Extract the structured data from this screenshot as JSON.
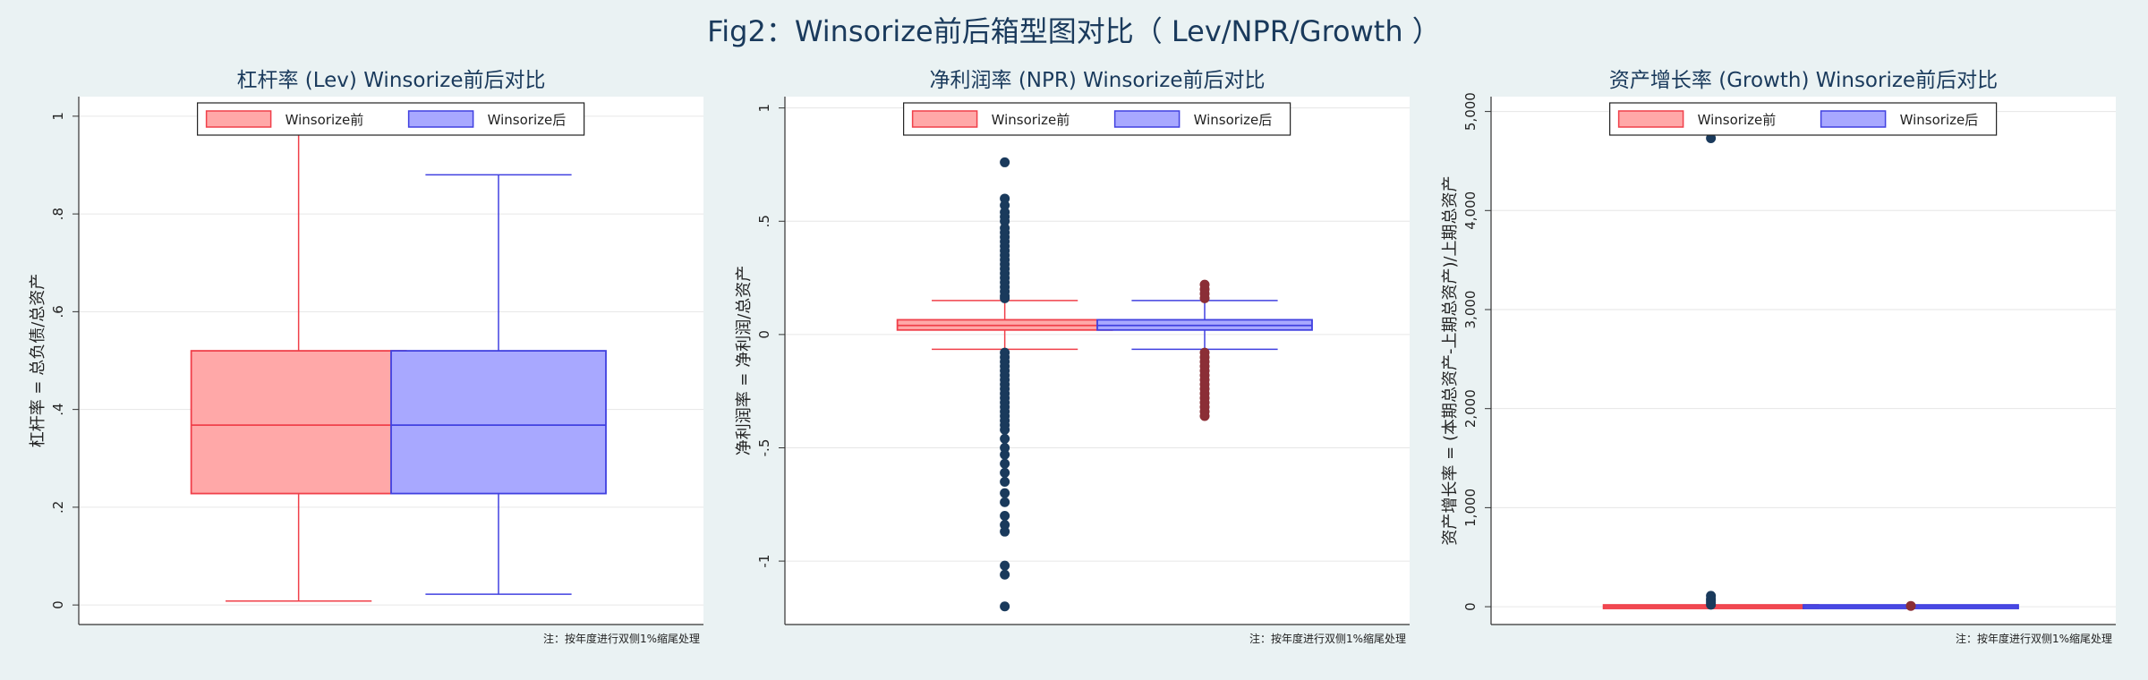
{
  "title": "Fig2：Winsorize前后箱型图对比（ Lev/NPR/Growth ）",
  "colors": {
    "before_fill": "#ffa8a8",
    "before_stroke": "#f0404a",
    "after_fill": "#a8a8ff",
    "after_stroke": "#4040e0",
    "outlier_before": "#1a3a5c",
    "outlier_after": "#8b2e36"
  },
  "chart_data": [
    {
      "type": "box",
      "title": "杠杆率 (Lev) Winsorize前后对比",
      "ylabel": "杠杆率 = 总负债/总资产",
      "note": "注：按年度进行双侧1%缩尾处理",
      "ylim": [
        -0.04,
        1.04
      ],
      "yticks": [
        0,
        0.2,
        0.4,
        0.6,
        0.8,
        1
      ],
      "ytick_labels": [
        "0",
        ".2",
        ".4",
        ".6",
        ".8",
        "1"
      ],
      "legend": [
        "Winsorize前",
        "Winsorize后"
      ],
      "legend_position": "top",
      "grid": true,
      "series": [
        {
          "name": "Winsorize前",
          "whisker_low": 0.008,
          "q1": 0.228,
          "median": 0.368,
          "q3": 0.52,
          "whisker_high": 0.965,
          "outliers": []
        },
        {
          "name": "Winsorize后",
          "whisker_low": 0.022,
          "q1": 0.228,
          "median": 0.368,
          "q3": 0.52,
          "whisker_high": 0.88,
          "outliers": []
        }
      ]
    },
    {
      "type": "box",
      "title": "净利润率 (NPR) Winsorize前后对比",
      "ylabel": "净利润率 = 净利润/总资产",
      "note": "注：按年度进行双侧1%缩尾处理",
      "ylim": [
        -1.28,
        1.05
      ],
      "yticks": [
        -1,
        -0.5,
        0,
        0.5,
        1
      ],
      "ytick_labels": [
        "-1",
        "-.5",
        "0",
        ".5",
        "1"
      ],
      "legend": [
        "Winsorize前",
        "Winsorize后"
      ],
      "legend_position": "top",
      "grid": true,
      "series": [
        {
          "name": "Winsorize前",
          "whisker_low": -0.065,
          "q1": 0.02,
          "median": 0.04,
          "q3": 0.065,
          "whisker_high": 0.15,
          "outliers": [
            0.76,
            0.6,
            0.57,
            0.54,
            0.52,
            0.5,
            0.47,
            0.45,
            0.43,
            0.41,
            0.39,
            0.37,
            0.35,
            0.33,
            0.31,
            0.29,
            0.27,
            0.25,
            0.23,
            0.21,
            0.19,
            0.17,
            0.16,
            -0.08,
            -0.1,
            -0.12,
            -0.14,
            -0.16,
            -0.18,
            -0.2,
            -0.22,
            -0.24,
            -0.26,
            -0.28,
            -0.3,
            -0.32,
            -0.34,
            -0.36,
            -0.38,
            -0.4,
            -0.42,
            -0.46,
            -0.5,
            -0.53,
            -0.57,
            -0.61,
            -0.65,
            -0.7,
            -0.74,
            -0.8,
            -0.84,
            -0.87,
            -1.02,
            -1.06,
            -1.2
          ]
        },
        {
          "name": "Winsorize后",
          "whisker_low": -0.065,
          "q1": 0.02,
          "median": 0.04,
          "q3": 0.065,
          "whisker_high": 0.15,
          "outliers": [
            0.22,
            0.2,
            0.18,
            0.16,
            -0.08,
            -0.1,
            -0.12,
            -0.14,
            -0.16,
            -0.18,
            -0.2,
            -0.22,
            -0.24,
            -0.26,
            -0.28,
            -0.3,
            -0.32,
            -0.34,
            -0.36
          ]
        }
      ]
    },
    {
      "type": "box",
      "title": "资产增长率 (Growth) Winsorize前后对比",
      "ylabel": "资产增长率 = (本期总资产-上期总资产)/上期总资产",
      "note": "注：按年度进行双侧1%缩尾处理",
      "ylim": [
        -180,
        5150
      ],
      "yticks": [
        0,
        1000,
        2000,
        3000,
        4000,
        5000
      ],
      "ytick_labels": [
        "0",
        "1,000",
        "2,000",
        "3,000",
        "4,000",
        "5,000"
      ],
      "legend": [
        "Winsorize前",
        "Winsorize后"
      ],
      "legend_position": "top",
      "grid": true,
      "series": [
        {
          "name": "Winsorize前",
          "whisker_low": -5,
          "q1": -2,
          "median": 0,
          "q3": 2,
          "whisker_high": 5,
          "outliers": [
            4730,
            110,
            80,
            60,
            40,
            20
          ]
        },
        {
          "name": "Winsorize后",
          "whisker_low": -3,
          "q1": -1,
          "median": 0,
          "q3": 1,
          "whisker_high": 3,
          "outliers": [
            8
          ]
        }
      ]
    }
  ]
}
